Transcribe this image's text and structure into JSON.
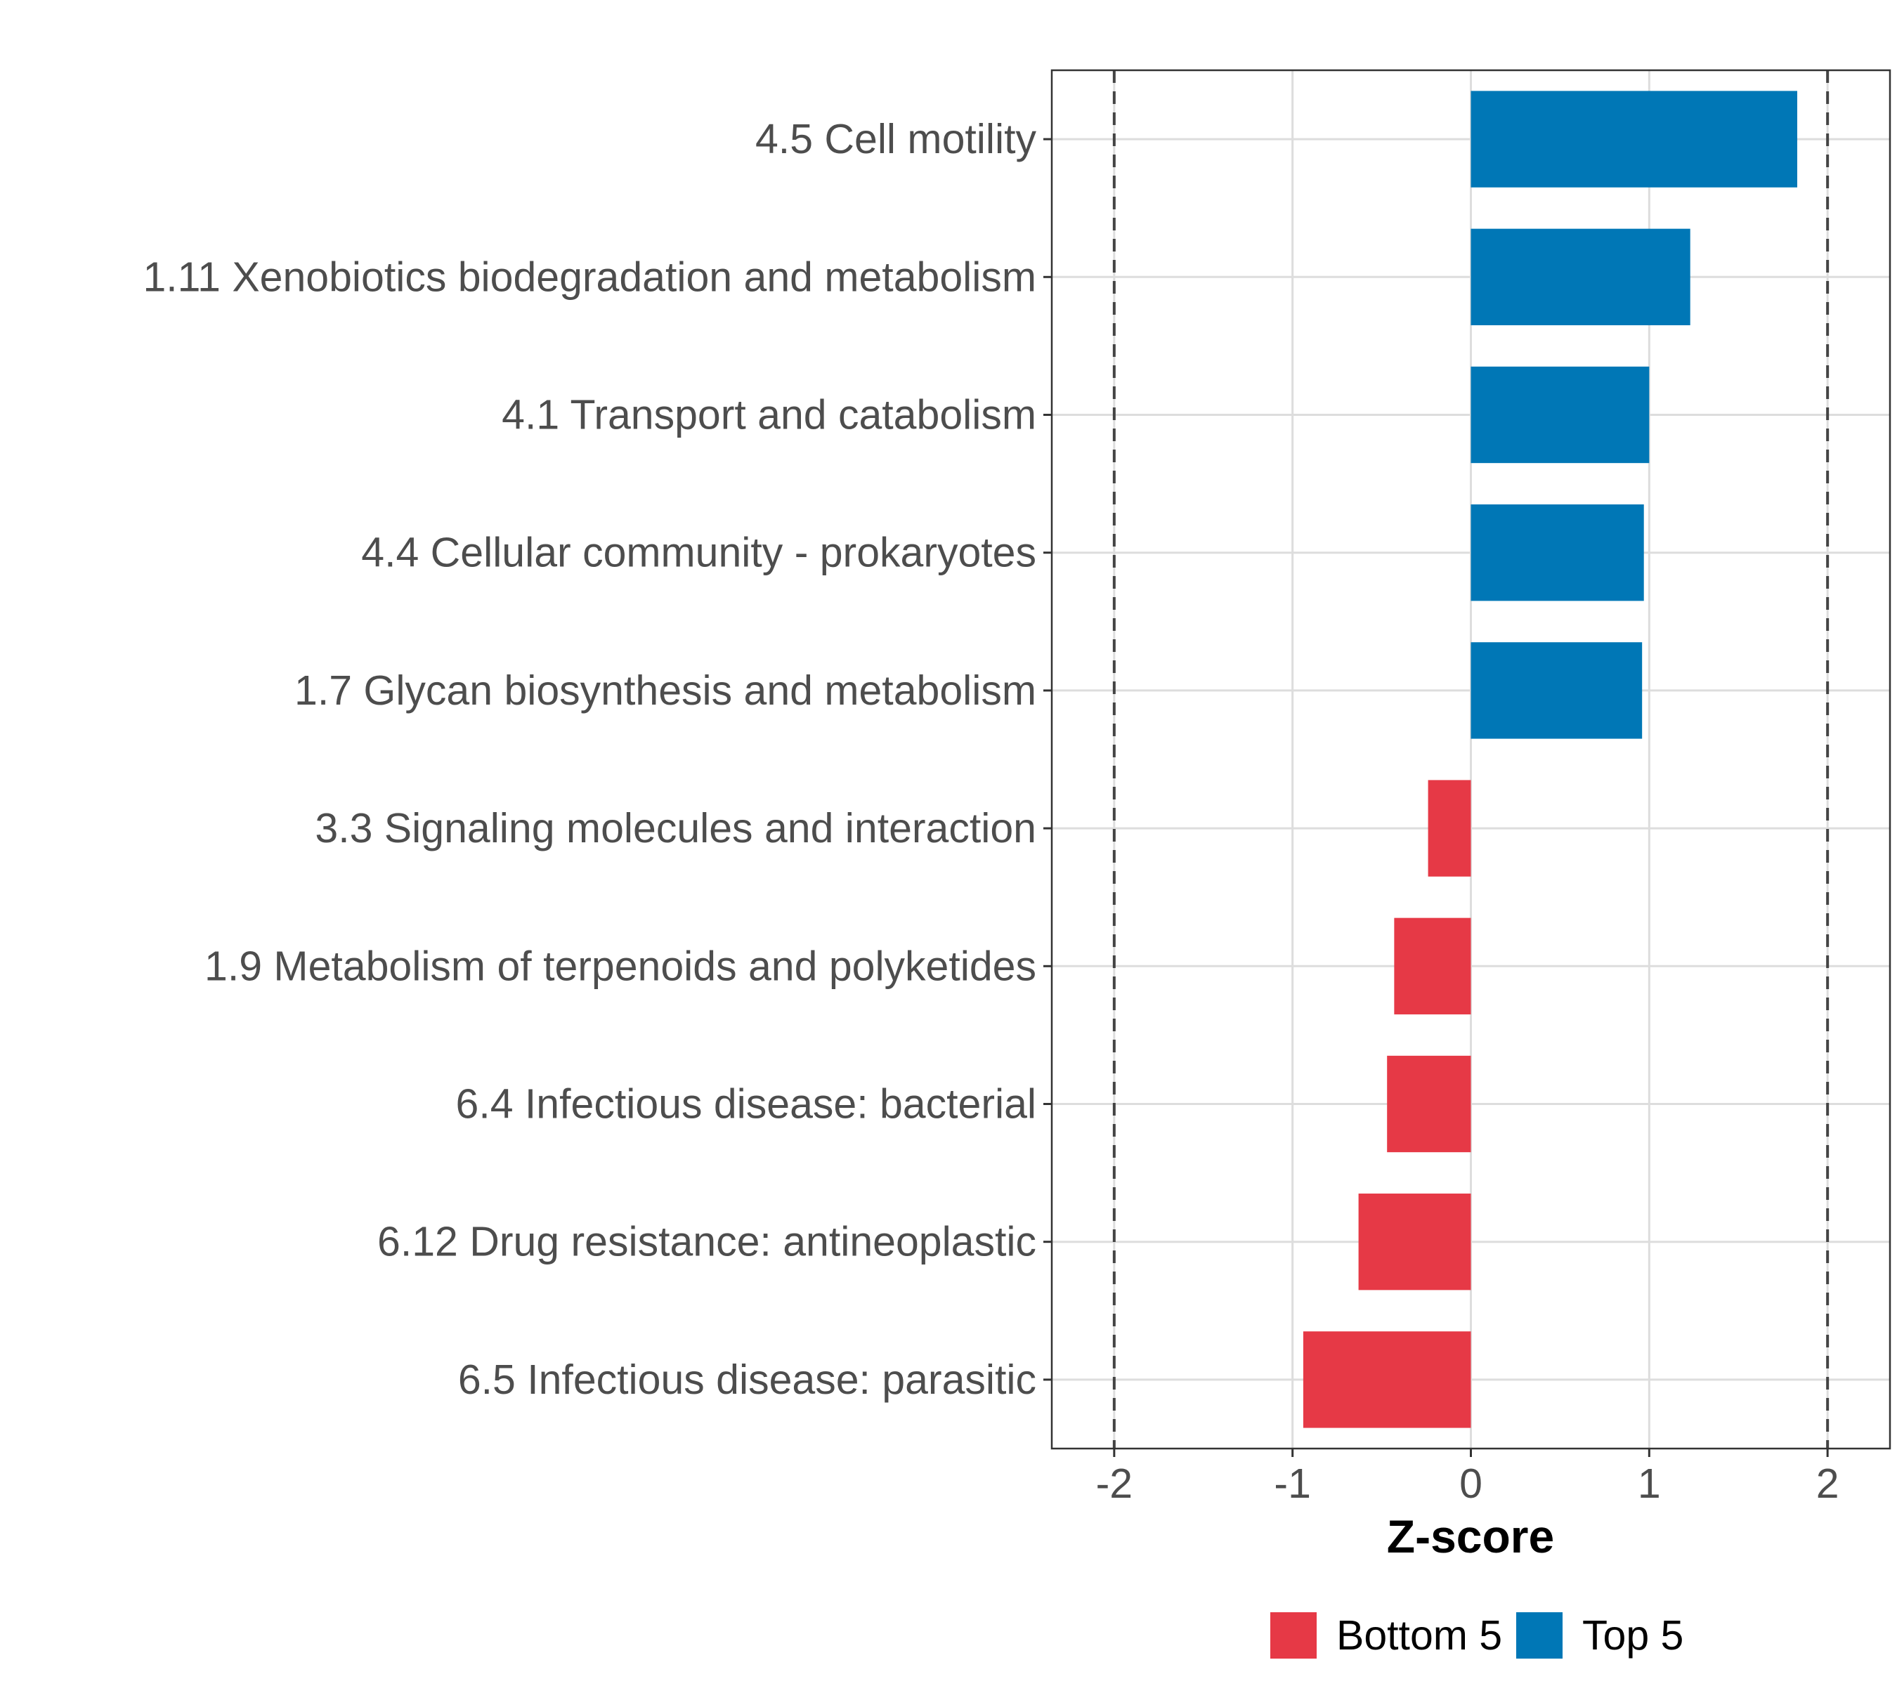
{
  "chart_data": {
    "type": "bar",
    "orientation": "horizontal",
    "categories": [
      "4.5 Cell motility",
      "1.11 Xenobiotics biodegradation and metabolism",
      "4.1 Transport and catabolism",
      "4.4 Cellular community - prokaryotes",
      "1.7 Glycan biosynthesis and metabolism",
      "3.3 Signaling molecules and interaction",
      "1.9 Metabolism of terpenoids and polyketides",
      "6.4 Infectious disease: bacterial",
      "6.12 Drug resistance: antineoplastic",
      "6.5 Infectious disease: parasitic"
    ],
    "values": [
      1.83,
      1.23,
      1.0,
      0.97,
      0.96,
      -0.24,
      -0.43,
      -0.47,
      -0.63,
      -0.94
    ],
    "groups": [
      "Top 5",
      "Top 5",
      "Top 5",
      "Top 5",
      "Top 5",
      "Bottom 5",
      "Bottom 5",
      "Bottom 5",
      "Bottom 5",
      "Bottom 5"
    ],
    "title": "",
    "xlabel": "Z-score",
    "ylabel": "",
    "xlim": [
      -2.35,
      2.35
    ],
    "xticks": [
      -2,
      -1,
      0,
      1,
      2
    ],
    "xtick_labels": [
      "-2",
      "-1",
      "0",
      "1",
      "2"
    ],
    "reference_lines": [
      -2,
      2
    ],
    "grid": true,
    "legend": {
      "position": "bottom",
      "entries": [
        {
          "name": "Bottom 5",
          "color": "#e63946"
        },
        {
          "name": "Top 5",
          "color": "#0077b6"
        }
      ]
    }
  }
}
